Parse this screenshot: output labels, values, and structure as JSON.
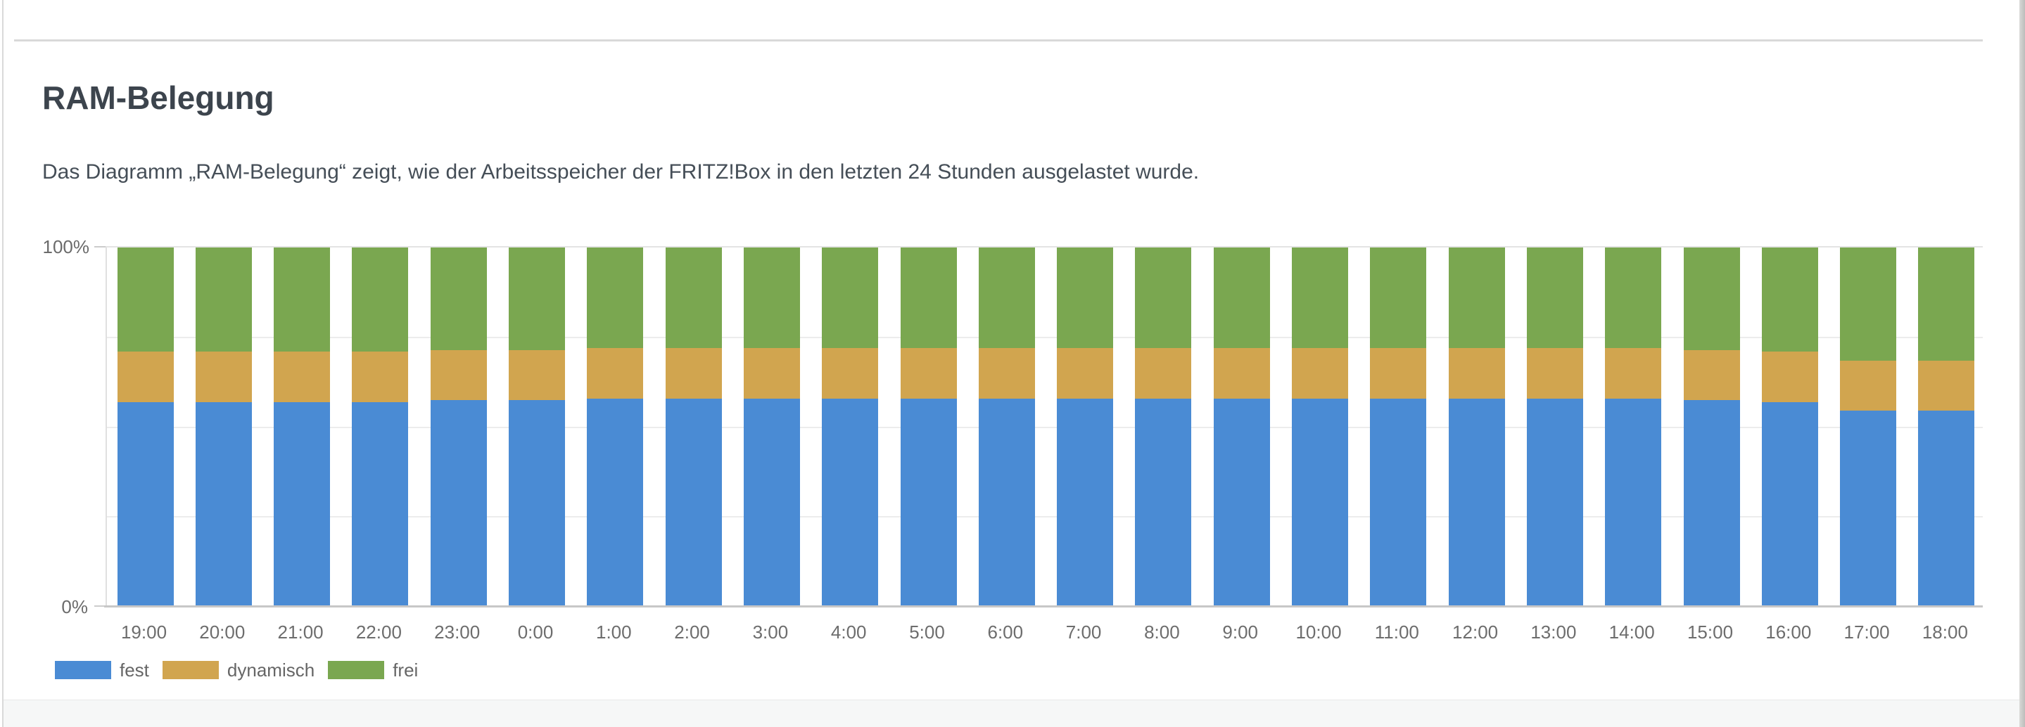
{
  "section": {
    "title": "RAM-Belegung",
    "description": "Das Diagramm „RAM-Belegung“ zeigt, wie der Arbeitsspeicher der FRITZ!Box in den letzten 24 Stunden ausgelastet wurde."
  },
  "colors": {
    "fest": "#4a8bd4",
    "dynamisch": "#d1a54f",
    "frei": "#7aa750",
    "axis_text": "#6b6b6b",
    "grid": "#ececec"
  },
  "chart_data": {
    "type": "bar",
    "stacked": true,
    "unit": "percent",
    "title": "RAM-Belegung",
    "categories": [
      "19:00",
      "20:00",
      "21:00",
      "22:00",
      "23:00",
      "0:00",
      "1:00",
      "2:00",
      "3:00",
      "4:00",
      "5:00",
      "6:00",
      "7:00",
      "8:00",
      "9:00",
      "10:00",
      "11:00",
      "12:00",
      "13:00",
      "14:00",
      "15:00",
      "16:00",
      "17:00",
      "18:00"
    ],
    "series": [
      {
        "name": "fest",
        "color": "#4a8bd4",
        "values": [
          57,
          57,
          57,
          57,
          57.5,
          57.5,
          58,
          58,
          58,
          58,
          58,
          58,
          58,
          58,
          58,
          58,
          58,
          58,
          58,
          58,
          57.5,
          57,
          54.5,
          54.5
        ]
      },
      {
        "name": "dynamisch",
        "color": "#d1a54f",
        "values": [
          14,
          14,
          14,
          14,
          14,
          14,
          14,
          14,
          14,
          14,
          14,
          14,
          14,
          14,
          14,
          14,
          14,
          14,
          14,
          14,
          14,
          14,
          14,
          14
        ]
      },
      {
        "name": "frei",
        "color": "#7aa750",
        "values": [
          29,
          29,
          29,
          29,
          28.5,
          28.5,
          28,
          28,
          28,
          28,
          28,
          28,
          28,
          28,
          28,
          28,
          28,
          28,
          28,
          28,
          28.5,
          29,
          31.5,
          31.5
        ]
      }
    ],
    "ylim": [
      0,
      100
    ],
    "yaxis": {
      "top_label": "100%",
      "bottom_label": "0%"
    },
    "gridlines_percent": [
      25,
      50,
      75,
      100
    ],
    "grid": true,
    "legend": [
      "fest",
      "dynamisch",
      "frei"
    ],
    "legend_position": "bottom-left"
  }
}
